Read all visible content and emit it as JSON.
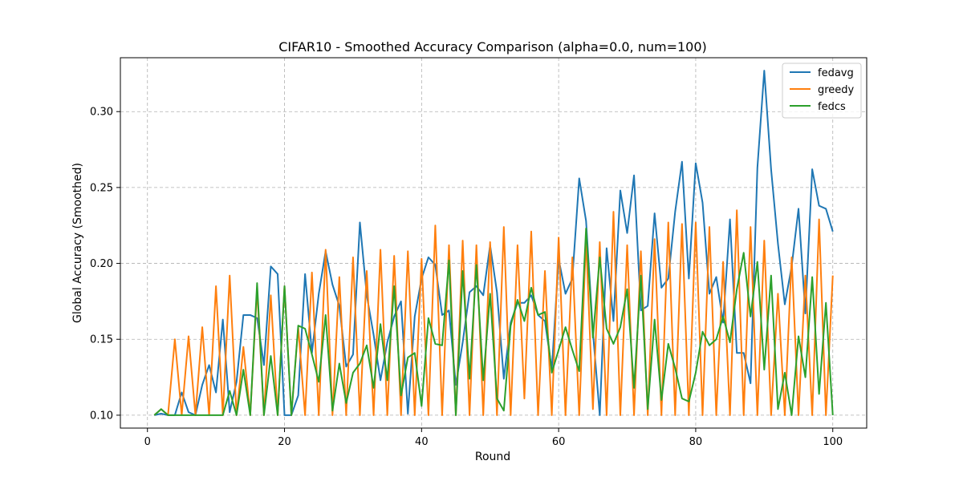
{
  "chart_data": {
    "type": "line",
    "title": "CIFAR10 - Smoothed Accuracy Comparison (alpha=0.0, num=100)",
    "xlabel": "Round",
    "ylabel": "Global Accuracy (Smoothed)",
    "xlim": [
      -3.95,
      104.95
    ],
    "ylim": [
      0.0915,
      0.3355
    ],
    "xticks": [
      0,
      20,
      40,
      60,
      80,
      100
    ],
    "yticks": [
      0.1,
      0.15,
      0.2,
      0.25,
      0.3
    ],
    "ytick_labels": [
      "0.10",
      "0.15",
      "0.20",
      "0.25",
      "0.30"
    ],
    "grid": true,
    "legend_position": "top-right",
    "x": [
      1,
      2,
      3,
      4,
      5,
      6,
      7,
      8,
      9,
      10,
      11,
      12,
      13,
      14,
      15,
      16,
      17,
      18,
      19,
      20,
      21,
      22,
      23,
      24,
      25,
      26,
      27,
      28,
      29,
      30,
      31,
      32,
      33,
      34,
      35,
      36,
      37,
      38,
      39,
      40,
      41,
      42,
      43,
      44,
      45,
      46,
      47,
      48,
      49,
      50,
      51,
      52,
      53,
      54,
      55,
      56,
      57,
      58,
      59,
      60,
      61,
      62,
      63,
      64,
      65,
      66,
      67,
      68,
      69,
      70,
      71,
      72,
      73,
      74,
      75,
      76,
      77,
      78,
      79,
      80,
      81,
      82,
      83,
      84,
      85,
      86,
      87,
      88,
      89,
      90,
      91,
      92,
      93,
      94,
      95,
      96,
      97,
      98,
      99,
      100
    ],
    "series": [
      {
        "name": "fedavg",
        "color": "#1f77b4",
        "values": [
          0.1,
          0.101,
          0.1,
          0.1,
          0.115,
          0.102,
          0.1,
          0.12,
          0.133,
          0.115,
          0.163,
          0.102,
          0.122,
          0.166,
          0.166,
          0.164,
          0.133,
          0.198,
          0.193,
          0.1,
          0.1,
          0.113,
          0.193,
          0.141,
          0.18,
          0.208,
          0.186,
          0.172,
          0.132,
          0.14,
          0.227,
          0.179,
          0.153,
          0.123,
          0.148,
          0.165,
          0.175,
          0.101,
          0.165,
          0.19,
          0.204,
          0.199,
          0.166,
          0.169,
          0.12,
          0.148,
          0.181,
          0.185,
          0.179,
          0.212,
          0.181,
          0.124,
          0.161,
          0.174,
          0.174,
          0.179,
          0.166,
          0.162,
          0.13,
          0.203,
          0.18,
          0.19,
          0.256,
          0.228,
          0.155,
          0.1,
          0.21,
          0.162,
          0.248,
          0.22,
          0.258,
          0.169,
          0.172,
          0.233,
          0.184,
          0.19,
          0.234,
          0.267,
          0.19,
          0.266,
          0.24,
          0.18,
          0.191,
          0.161,
          0.229,
          0.141,
          0.141,
          0.121,
          0.263,
          0.327,
          0.262,
          0.213,
          0.173,
          0.198,
          0.236,
          0.167,
          0.262,
          0.238,
          0.236,
          0.221
        ]
      },
      {
        "name": "greedy",
        "color": "#ff7f0e",
        "values": [
          0.1,
          0.104,
          0.1,
          0.15,
          0.1,
          0.152,
          0.1,
          0.158,
          0.1,
          0.185,
          0.1,
          0.192,
          0.1,
          0.145,
          0.1,
          0.183,
          0.1,
          0.179,
          0.1,
          0.185,
          0.1,
          0.158,
          0.1,
          0.194,
          0.1,
          0.209,
          0.1,
          0.191,
          0.1,
          0.204,
          0.1,
          0.195,
          0.1,
          0.209,
          0.1,
          0.205,
          0.1,
          0.208,
          0.1,
          0.203,
          0.1,
          0.225,
          0.1,
          0.212,
          0.1,
          0.215,
          0.1,
          0.212,
          0.1,
          0.214,
          0.1,
          0.224,
          0.1,
          0.212,
          0.111,
          0.221,
          0.1,
          0.195,
          0.1,
          0.217,
          0.1,
          0.204,
          0.1,
          0.216,
          0.104,
          0.214,
          0.1,
          0.234,
          0.1,
          0.212,
          0.1,
          0.208,
          0.1,
          0.216,
          0.1,
          0.227,
          0.1,
          0.226,
          0.1,
          0.227,
          0.1,
          0.224,
          0.1,
          0.201,
          0.1,
          0.235,
          0.1,
          0.224,
          0.1,
          0.215,
          0.1,
          0.18,
          0.1,
          0.204,
          0.1,
          0.192,
          0.1,
          0.229,
          0.1,
          0.192
        ]
      },
      {
        "name": "fedcs",
        "color": "#2ca02c",
        "values": [
          0.1,
          0.104,
          0.1,
          0.1,
          0.1,
          0.1,
          0.1,
          0.1,
          0.1,
          0.1,
          0.1,
          0.116,
          0.1,
          0.13,
          0.1,
          0.187,
          0.1,
          0.139,
          0.1,
          0.185,
          0.1,
          0.159,
          0.157,
          0.14,
          0.122,
          0.166,
          0.103,
          0.134,
          0.108,
          0.128,
          0.134,
          0.146,
          0.118,
          0.16,
          0.123,
          0.185,
          0.113,
          0.138,
          0.141,
          0.106,
          0.164,
          0.147,
          0.146,
          0.202,
          0.1,
          0.195,
          0.124,
          0.199,
          0.123,
          0.18,
          0.111,
          0.103,
          0.159,
          0.176,
          0.162,
          0.184,
          0.166,
          0.168,
          0.128,
          0.143,
          0.158,
          0.143,
          0.129,
          0.223,
          0.151,
          0.204,
          0.157,
          0.147,
          0.158,
          0.183,
          0.118,
          0.192,
          0.104,
          0.163,
          0.11,
          0.147,
          0.131,
          0.111,
          0.109,
          0.128,
          0.155,
          0.146,
          0.15,
          0.165,
          0.148,
          0.183,
          0.207,
          0.165,
          0.201,
          0.13,
          0.192,
          0.104,
          0.128,
          0.1,
          0.152,
          0.125,
          0.191,
          0.114,
          0.174,
          0.1
        ]
      }
    ]
  }
}
